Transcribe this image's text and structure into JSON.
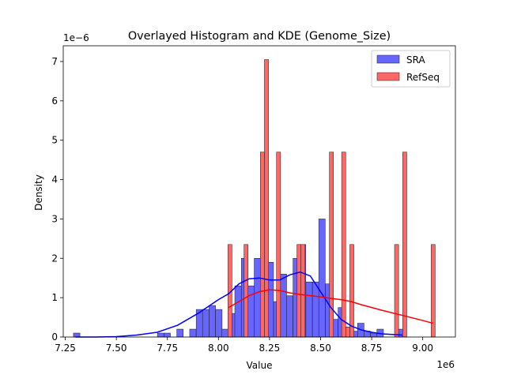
{
  "chart_data": {
    "type": "bar",
    "title": "Overlayed Histogram and KDE (Genome_Size)",
    "xlabel": "Value",
    "ylabel": "Density",
    "x_offset_label": "1e6",
    "y_offset_label": "1e−6",
    "xlim": [
      7.24,
      9.16
    ],
    "ylim": [
      0,
      7.4
    ],
    "x_ticks": [
      7.25,
      7.5,
      7.75,
      8.0,
      8.25,
      8.5,
      8.75,
      9.0
    ],
    "x_tick_labels": [
      "7.25",
      "7.50",
      "7.75",
      "8.00",
      "8.25",
      "8.50",
      "8.75",
      "9.00"
    ],
    "y_ticks": [
      0,
      1,
      2,
      3,
      4,
      5,
      6,
      7
    ],
    "y_tick_labels": [
      "0",
      "1",
      "2",
      "3",
      "4",
      "5",
      "6",
      "7"
    ],
    "grid": false,
    "legend_position": "top-right",
    "series": [
      {
        "name": "SRA",
        "color": "#0000ff",
        "bar_color": "#6666ff",
        "bin_width": 0.0316,
        "bins": [
          [
            7.29,
            0.1
          ],
          [
            7.701,
            0.1
          ],
          [
            7.733,
            0.1
          ],
          [
            7.796,
            0.2
          ],
          [
            7.859,
            0.2
          ],
          [
            7.891,
            0.7
          ],
          [
            7.922,
            0.7
          ],
          [
            7.954,
            0.8
          ],
          [
            7.986,
            0.7
          ],
          [
            8.017,
            0.2
          ],
          [
            8.049,
            0.6
          ],
          [
            8.08,
            1.3
          ],
          [
            8.112,
            2.0
          ],
          [
            8.144,
            1.3
          ],
          [
            8.175,
            2.0
          ],
          [
            8.207,
            1.5
          ],
          [
            8.238,
            1.9
          ],
          [
            8.27,
            0.9
          ],
          [
            8.302,
            1.6
          ],
          [
            8.333,
            1.05
          ],
          [
            8.365,
            2.0
          ],
          [
            8.396,
            2.35
          ],
          [
            8.428,
            1.4
          ],
          [
            8.46,
            1.4
          ],
          [
            8.491,
            3.0
          ],
          [
            8.523,
            1.35
          ],
          [
            8.554,
            0.45
          ],
          [
            8.586,
            0.75
          ],
          [
            8.618,
            0.25
          ],
          [
            8.649,
            0.15
          ],
          [
            8.681,
            0.35
          ],
          [
            8.712,
            0.15
          ],
          [
            8.744,
            0.1
          ],
          [
            8.776,
            0.2
          ],
          [
            8.87,
            0.2
          ]
        ],
        "kde_x": [
          7.3,
          7.4,
          7.5,
          7.6,
          7.7,
          7.8,
          7.9,
          8.0,
          8.05,
          8.1,
          8.15,
          8.2,
          8.25,
          8.3,
          8.35,
          8.4,
          8.45,
          8.5,
          8.55,
          8.6,
          8.65,
          8.7,
          8.75,
          8.8,
          8.9
        ],
        "kde_y": [
          0.0,
          0.0,
          0.01,
          0.05,
          0.12,
          0.3,
          0.6,
          0.95,
          1.1,
          1.35,
          1.48,
          1.5,
          1.45,
          1.45,
          1.58,
          1.65,
          1.55,
          1.15,
          0.75,
          0.45,
          0.28,
          0.18,
          0.12,
          0.08,
          0.05
        ]
      },
      {
        "name": "RefSeq",
        "color": "#ff0000",
        "bar_color": "#ff6666",
        "bin_width": 0.0199,
        "bins": [
          [
            8.046,
            2.35
          ],
          [
            8.125,
            2.35
          ],
          [
            8.205,
            4.7
          ],
          [
            8.225,
            7.05
          ],
          [
            8.284,
            4.7
          ],
          [
            8.384,
            2.35
          ],
          [
            8.404,
            2.35
          ],
          [
            8.543,
            4.7
          ],
          [
            8.603,
            4.7
          ],
          [
            8.623,
            0.25
          ],
          [
            8.643,
            2.35
          ],
          [
            8.862,
            2.35
          ],
          [
            8.902,
            4.7
          ],
          [
            9.041,
            2.35
          ]
        ],
        "kde_x": [
          8.05,
          8.1,
          8.15,
          8.2,
          8.25,
          8.3,
          8.35,
          8.4,
          8.45,
          8.5,
          8.55,
          8.6,
          8.65,
          8.7,
          8.8,
          8.9,
          9.0,
          9.05
        ],
        "kde_y": [
          0.75,
          0.9,
          1.05,
          1.15,
          1.2,
          1.18,
          1.12,
          1.08,
          1.05,
          1.02,
          0.98,
          0.95,
          0.9,
          0.82,
          0.68,
          0.55,
          0.42,
          0.35
        ]
      }
    ]
  }
}
